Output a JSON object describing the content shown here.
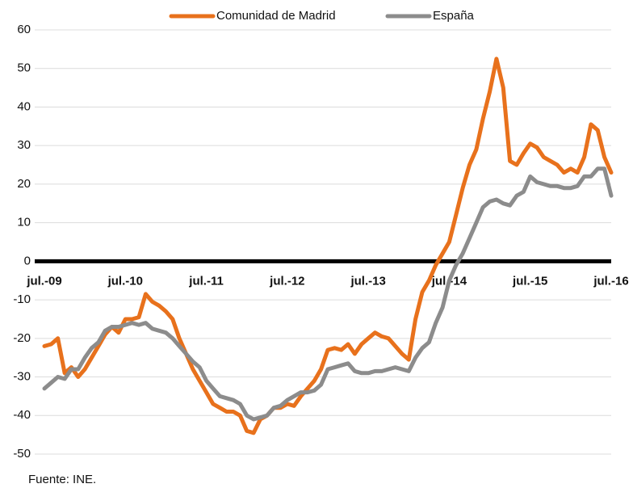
{
  "chart_data": {
    "type": "line",
    "categories": [
      "jul.-09",
      null,
      null,
      null,
      null,
      null,
      null,
      null,
      null,
      null,
      null,
      null,
      "jul.-10",
      null,
      null,
      null,
      null,
      null,
      null,
      null,
      null,
      null,
      null,
      null,
      "jul.-11",
      null,
      null,
      null,
      null,
      null,
      null,
      null,
      null,
      null,
      null,
      null,
      "jul.-12",
      null,
      null,
      null,
      null,
      null,
      null,
      null,
      null,
      null,
      null,
      null,
      "jul.-13",
      null,
      null,
      null,
      null,
      null,
      null,
      null,
      null,
      null,
      null,
      null,
      "jul.-14",
      null,
      null,
      null,
      null,
      null,
      null,
      null,
      null,
      null,
      null,
      null,
      "jul.-15",
      null,
      null,
      null,
      null,
      null,
      null,
      null,
      null,
      null,
      null,
      null,
      "jul.-16"
    ],
    "series": [
      {
        "name": "Comunidad de Madrid",
        "color": "#e8711c",
        "values": [
          -22,
          -21.5,
          -20,
          -29,
          -27.5,
          -30,
          -28,
          -25,
          -22,
          -19,
          -17,
          -18.5,
          -15,
          -15,
          -14.5,
          -8.5,
          -10.5,
          -11.5,
          -13,
          -15,
          -20,
          -24,
          -28,
          -31,
          -34,
          -37,
          -38,
          -39,
          -39,
          -40,
          -44,
          -44.5,
          -41,
          -40,
          -38,
          -38,
          -37,
          -37.5,
          -35,
          -33,
          -31,
          -28,
          -23,
          -22.5,
          -23,
          -21.5,
          -24,
          -21.5,
          -20,
          -18.5,
          -19.5,
          -20,
          -22,
          -24,
          -25.5,
          -15,
          -8,
          -5,
          -1,
          2,
          5,
          12,
          19,
          25,
          29,
          37,
          44,
          52.5,
          45,
          26,
          25,
          28,
          30.5,
          29.5,
          27,
          26,
          25,
          23,
          24,
          23,
          27,
          35.5,
          34,
          27,
          23
        ]
      },
      {
        "name": "España",
        "color": "#8c8c8c",
        "values": [
          -33,
          -31.5,
          -30,
          -30.5,
          -28,
          -28,
          -25,
          -22.5,
          -21,
          -18,
          -17,
          -17,
          -16.5,
          -16,
          -16.5,
          -16,
          -17.5,
          -18,
          -18.5,
          -20,
          -22,
          -24,
          -26,
          -27.5,
          -31,
          -33,
          -35,
          -35.5,
          -36,
          -37,
          -40,
          -41,
          -40.5,
          -40,
          -38,
          -37.5,
          -36,
          -35,
          -34,
          -34,
          -33.5,
          -32,
          -28,
          -27.5,
          -27,
          -26.5,
          -28.5,
          -29,
          -29,
          -28.5,
          -28.5,
          -28,
          -27.5,
          -28,
          -28.5,
          -25,
          -22.5,
          -21,
          -16,
          -12,
          -5,
          -1,
          2,
          6,
          10,
          14,
          15.5,
          16,
          15,
          14.5,
          17,
          18,
          22,
          20.5,
          20,
          19.5,
          19.5,
          19,
          19,
          19.5,
          22,
          22,
          24,
          24,
          17
        ]
      }
    ],
    "ylim": [
      -50,
      60
    ],
    "yticks": [
      -50,
      -40,
      -30,
      -20,
      -10,
      0,
      10,
      20,
      30,
      40,
      50,
      60
    ],
    "grid": true,
    "source": "Fuente: INE."
  }
}
